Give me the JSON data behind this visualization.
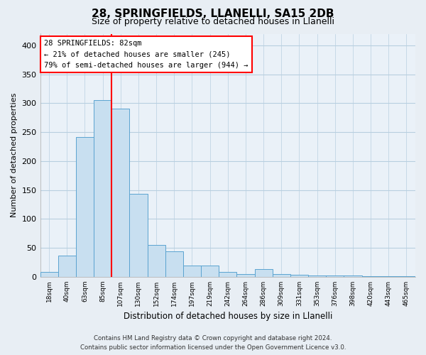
{
  "title": "28, SPRINGFIELDS, LLANELLI, SA15 2DB",
  "subtitle": "Size of property relative to detached houses in Llanelli",
  "xlabel": "Distribution of detached houses by size in Llanelli",
  "ylabel": "Number of detached properties",
  "bin_labels": [
    "18sqm",
    "40sqm",
    "63sqm",
    "85sqm",
    "107sqm",
    "130sqm",
    "152sqm",
    "174sqm",
    "197sqm",
    "219sqm",
    "242sqm",
    "264sqm",
    "286sqm",
    "309sqm",
    "331sqm",
    "353sqm",
    "376sqm",
    "398sqm",
    "420sqm",
    "443sqm",
    "465sqm"
  ],
  "bar_heights": [
    8,
    37,
    241,
    305,
    290,
    143,
    55,
    44,
    20,
    20,
    9,
    5,
    13,
    5,
    3,
    2,
    2,
    2,
    1,
    1,
    1
  ],
  "bar_color": "#c8dff0",
  "bar_edge_color": "#5ba3d0",
  "vline_x_index": 3,
  "vline_color": "red",
  "annotation_title": "28 SPRINGFIELDS: 82sqm",
  "annotation_line1": "← 21% of detached houses are smaller (245)",
  "annotation_line2": "79% of semi-detached houses are larger (944) →",
  "annotation_box_color": "white",
  "annotation_box_edge": "red",
  "ylim": [
    0,
    420
  ],
  "yticks": [
    0,
    50,
    100,
    150,
    200,
    250,
    300,
    350,
    400
  ],
  "footer_line1": "Contains HM Land Registry data © Crown copyright and database right 2024.",
  "footer_line2": "Contains public sector information licensed under the Open Government Licence v3.0.",
  "background_color": "#e8eef4",
  "plot_bg_color": "#eaf1f8",
  "grid_color": "#b8cfe0",
  "title_fontsize": 11,
  "subtitle_fontsize": 9
}
